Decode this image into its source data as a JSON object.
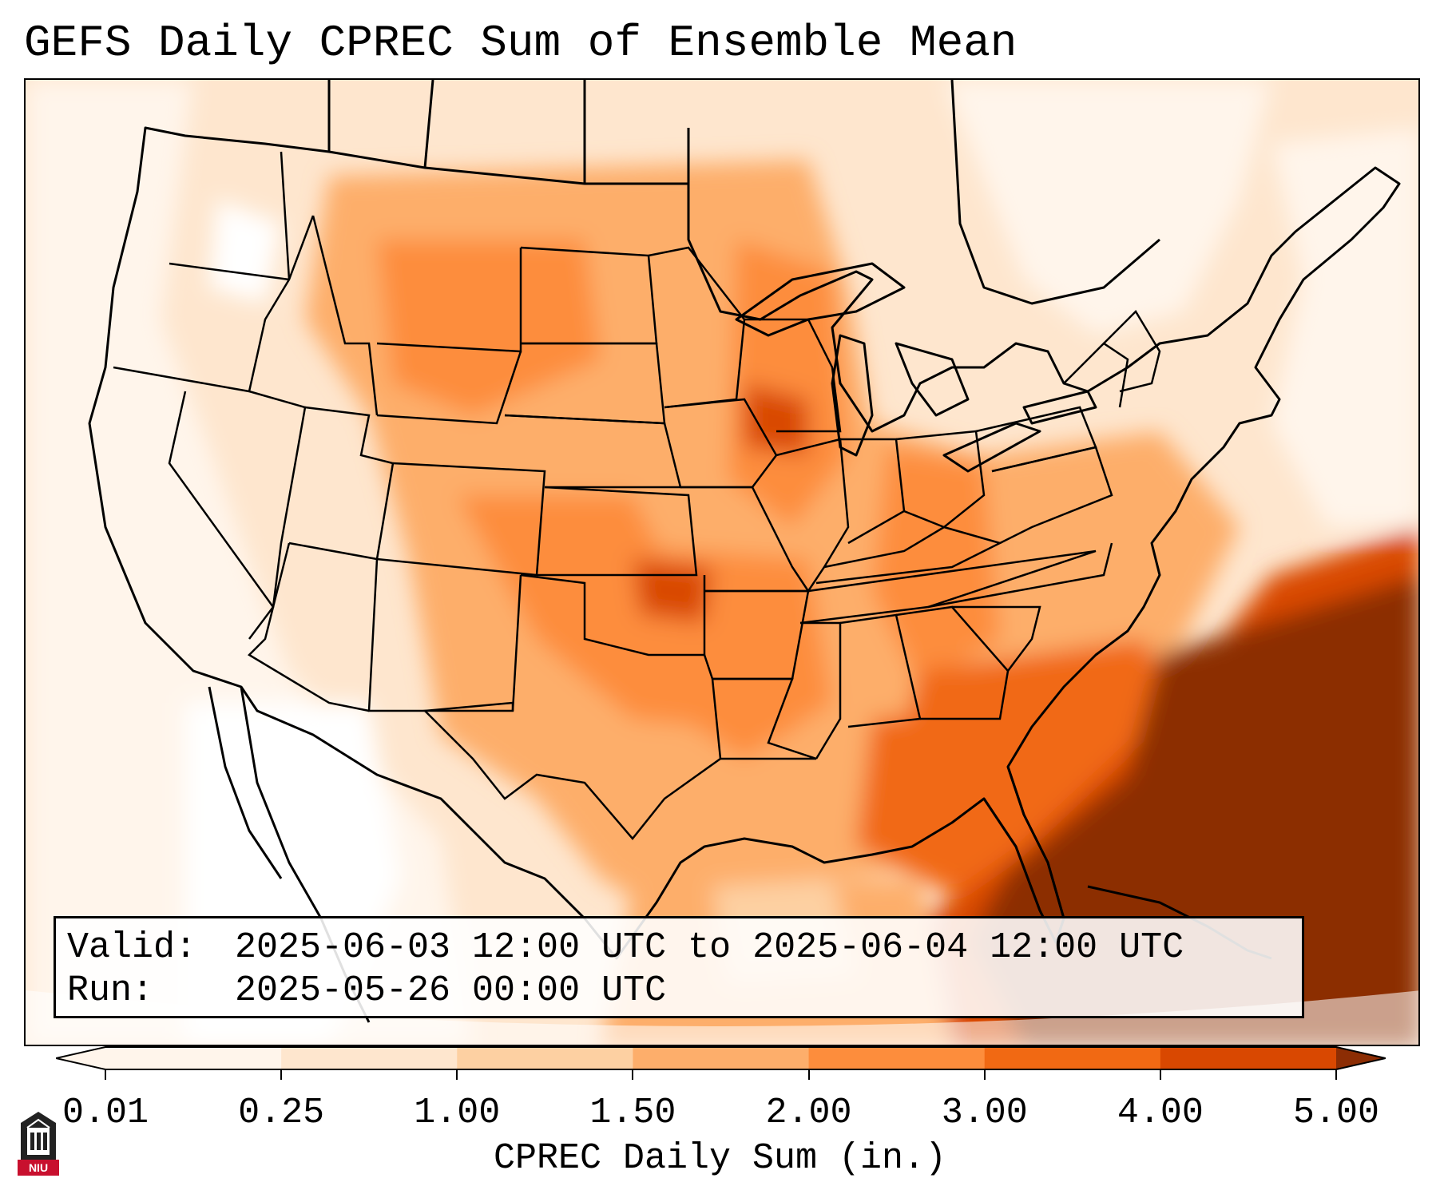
{
  "title": "GEFS Daily CPREC Sum of Ensemble Mean",
  "info": {
    "valid_label": "Valid:",
    "valid_value": "2025-06-03 12:00 UTC to 2025-06-04 12:00 UTC",
    "run_label": "Run:",
    "run_value": "2025-05-26 00:00 UTC"
  },
  "colorbar": {
    "label": "CPREC Daily Sum (in.)",
    "ticks": [
      "0.01",
      "0.25",
      "1.00",
      "1.50",
      "2.00",
      "3.00",
      "4.00",
      "5.00"
    ],
    "colors": [
      "#fff5eb",
      "#fee6ce",
      "#fdd0a2",
      "#fdae6b",
      "#fd8d3c",
      "#f16913",
      "#d94801",
      "#8c2d04"
    ],
    "extend": "both"
  },
  "logo": {
    "text": "NIU",
    "color": "#c8102e"
  },
  "map": {
    "region": "Contiguous United States",
    "field": "CPREC",
    "max_color": "#8c2d04"
  }
}
